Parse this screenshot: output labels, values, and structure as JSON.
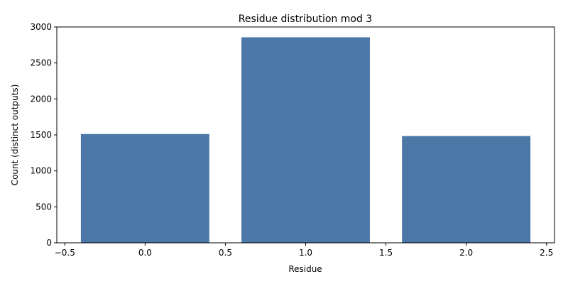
{
  "chart_data": {
    "type": "bar",
    "title": "Residue distribution mod 3",
    "xlabel": "Residue",
    "ylabel": "Count (distinct outputs)",
    "x": [
      0,
      1,
      2
    ],
    "values": [
      1512,
      2857,
      1484
    ],
    "bar_width": 0.8,
    "bar_color": "#4c78a8",
    "xlim": [
      -0.55,
      2.55
    ],
    "ylim": [
      0,
      3000
    ],
    "xticks": [
      -0.5,
      0.0,
      0.5,
      1.0,
      1.5,
      2.0,
      2.5
    ],
    "xtick_labels": [
      "−0.5",
      "0.0",
      "0.5",
      "1.0",
      "1.5",
      "2.0",
      "2.5"
    ],
    "yticks": [
      0,
      500,
      1000,
      1500,
      2000,
      2500,
      3000
    ],
    "ytick_labels": [
      "0",
      "500",
      "1000",
      "1500",
      "2000",
      "2500",
      "3000"
    ],
    "grid": false,
    "legend": "none"
  }
}
